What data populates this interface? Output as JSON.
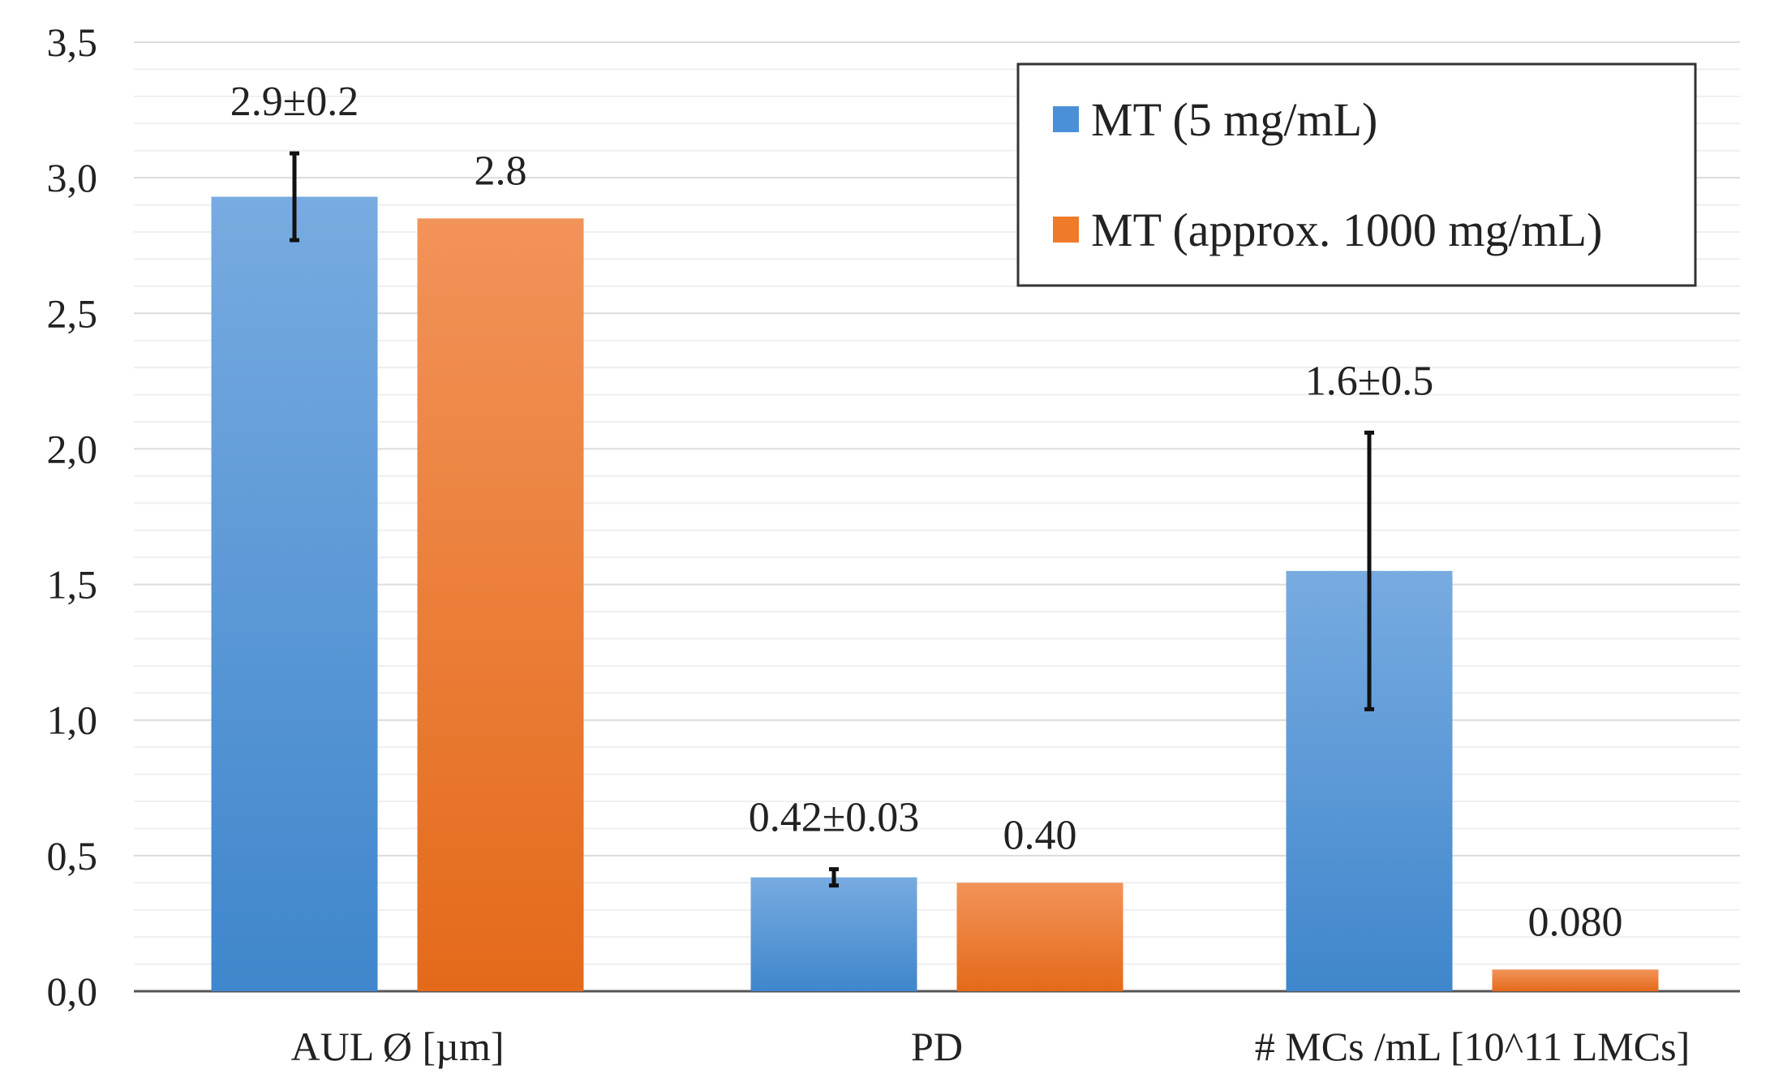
{
  "chart_data": {
    "type": "bar",
    "title": "",
    "xlabel": "",
    "ylabel": "",
    "ylim": [
      0,
      3.5
    ],
    "y_ticks": [
      0,
      0.5,
      1.0,
      1.5,
      2.0,
      2.5,
      3.0,
      3.5
    ],
    "y_tick_labels": [
      "0,0",
      "0,5",
      "1,0",
      "1,5",
      "2,0",
      "2,5",
      "3,0",
      "3,5"
    ],
    "grid": true,
    "legend_position": "top-right",
    "categories": [
      "AUL Ø [µm]",
      "PD",
      "# MCs /mL  [10^11 LMCs]"
    ],
    "series": [
      {
        "name": "MT (5 mg/mL)",
        "color": "#4a90d9",
        "values": [
          2.93,
          0.42,
          1.55
        ],
        "errors": [
          0.16,
          0.03,
          0.51
        ],
        "labels": [
          "2.9±0.2",
          "0.42±0.03",
          "1.6±0.5"
        ]
      },
      {
        "name": "MT (approx. 1000 mg/mL)",
        "color": "#ee7a2a",
        "values": [
          2.85,
          0.4,
          0.08
        ],
        "errors": [
          null,
          null,
          null
        ],
        "labels": [
          "2.8",
          "0.40",
          "0.080"
        ]
      }
    ]
  }
}
